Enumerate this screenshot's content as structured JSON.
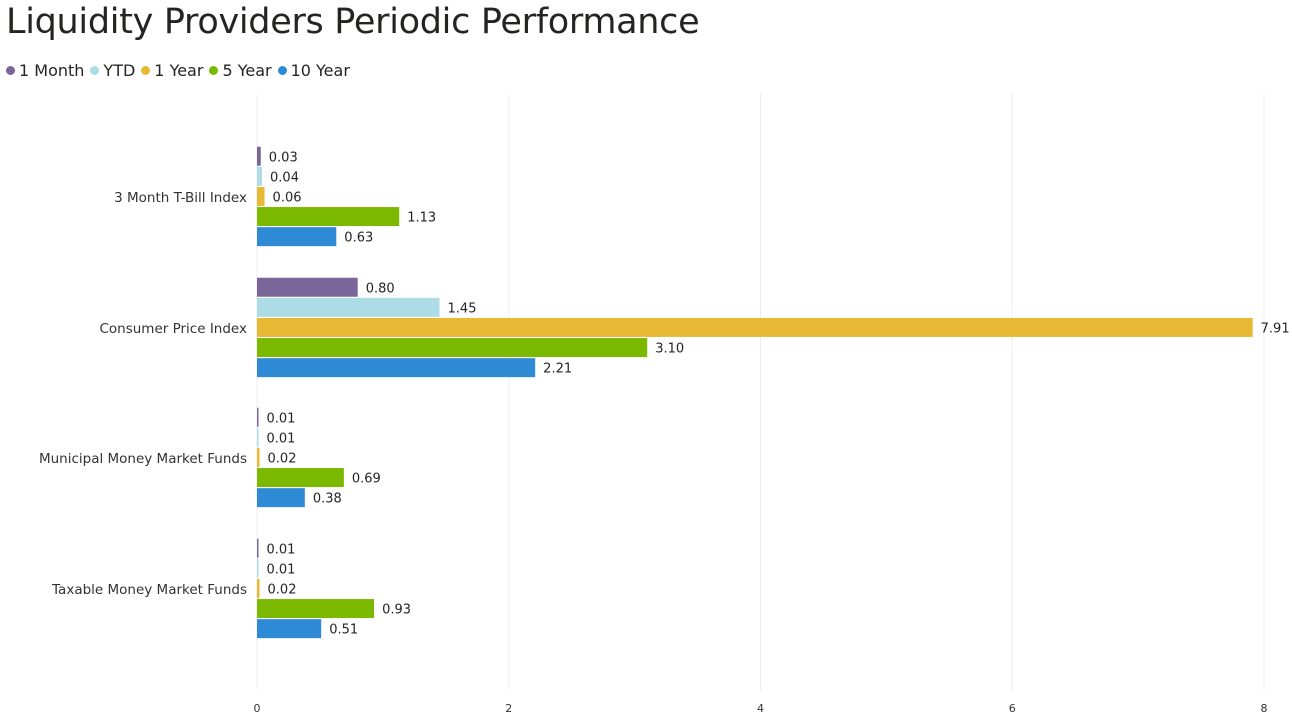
{
  "chart_data": {
    "type": "bar",
    "orientation": "horizontal",
    "title": "Liquidity Providers Periodic Performance",
    "categories": [
      "3 Month T-Bill Index",
      "Consumer Price Index",
      "Municipal Money Market Funds",
      "Taxable Money Market Funds"
    ],
    "series": [
      {
        "name": "1 Month",
        "color": "#7A6699",
        "values": [
          0.03,
          0.8,
          0.01,
          0.01
        ],
        "labels": [
          "0.03",
          "0.80",
          "0.01",
          "0.01"
        ]
      },
      {
        "name": "YTD",
        "color": "#ADDCE6",
        "values": [
          0.04,
          1.45,
          0.01,
          0.01
        ],
        "labels": [
          "0.04",
          "1.45",
          "0.01",
          "0.01"
        ]
      },
      {
        "name": "1 Year",
        "color": "#E8B934",
        "values": [
          0.06,
          7.91,
          0.02,
          0.02
        ],
        "labels": [
          "0.06",
          "7.91",
          "0.02",
          "0.02"
        ]
      },
      {
        "name": "5 Year",
        "color": "#7BB800",
        "values": [
          1.13,
          3.1,
          0.69,
          0.93
        ],
        "labels": [
          "1.13",
          "3.10",
          "0.69",
          "0.93"
        ]
      },
      {
        "name": "10 Year",
        "color": "#2F8AD6",
        "values": [
          0.63,
          2.21,
          0.38,
          0.51
        ],
        "labels": [
          "0.63",
          "2.21",
          "0.38",
          "0.51"
        ]
      }
    ],
    "xlim": [
      0,
      8
    ],
    "xticks": [
      0,
      2,
      4,
      6,
      8
    ],
    "grid": true,
    "legend_position": "top-left",
    "gridline_color": "#EDEDED"
  }
}
